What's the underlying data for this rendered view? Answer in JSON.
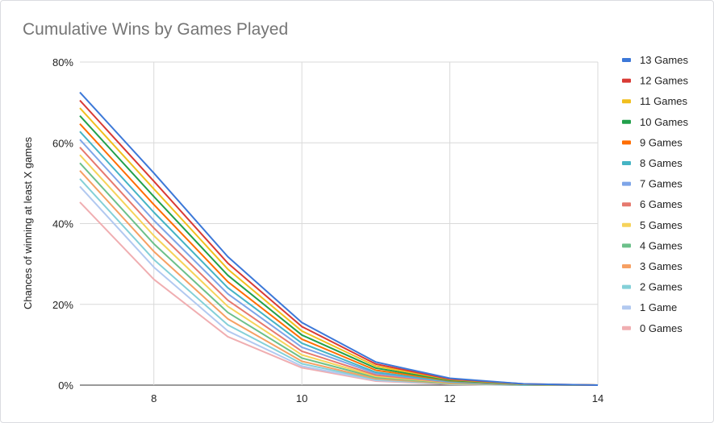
{
  "chart_data": {
    "type": "line",
    "title": "Cumulative Wins by Games Played",
    "xlabel": "",
    "ylabel": "Chances of winning at least X games",
    "xlim": [
      7,
      14
    ],
    "ylim": [
      0,
      0.8
    ],
    "x_ticks": [
      8,
      10,
      12,
      14
    ],
    "x_tick_labels": [
      "8",
      "10",
      "12",
      "14"
    ],
    "y_ticks": [
      0,
      0.2,
      0.4,
      0.6,
      0.8
    ],
    "y_tick_labels": [
      "0%",
      "20%",
      "40%",
      "60%",
      "80%"
    ],
    "grid": true,
    "legend_position": "right",
    "x": [
      7,
      8,
      9,
      10,
      11,
      12,
      13,
      14
    ],
    "series": [
      {
        "name": "13 Games",
        "color": "#3c78d8",
        "values": [
          0.725,
          0.525,
          0.318,
          0.155,
          0.057,
          0.017,
          0.003,
          0.0
        ]
      },
      {
        "name": "12 Games",
        "color": "#d93a34",
        "values": [
          0.705,
          0.505,
          0.302,
          0.145,
          0.052,
          0.015,
          0.003,
          0.0
        ]
      },
      {
        "name": "11 Games",
        "color": "#f1bf1e",
        "values": [
          0.686,
          0.486,
          0.287,
          0.134,
          0.047,
          0.014,
          0.002,
          0.0
        ]
      },
      {
        "name": "10 Games",
        "color": "#22a04b",
        "values": [
          0.667,
          0.467,
          0.272,
          0.124,
          0.042,
          0.012,
          0.002,
          0.0
        ]
      },
      {
        "name": "9 Games",
        "color": "#ff6d01",
        "values": [
          0.647,
          0.447,
          0.256,
          0.114,
          0.037,
          0.011,
          0.002,
          0.0
        ]
      },
      {
        "name": "8 Games",
        "color": "#45b4c4",
        "values": [
          0.628,
          0.428,
          0.241,
          0.104,
          0.032,
          0.009,
          0.001,
          0.0
        ]
      },
      {
        "name": "7 Games",
        "color": "#7ea5e8",
        "values": [
          0.608,
          0.408,
          0.226,
          0.094,
          0.029,
          0.008,
          0.001,
          0.0
        ]
      },
      {
        "name": "6 Games",
        "color": "#e6796e",
        "values": [
          0.589,
          0.389,
          0.21,
          0.084,
          0.025,
          0.007,
          0.001,
          0.0
        ]
      },
      {
        "name": "5 Games",
        "color": "#f6d35a",
        "values": [
          0.57,
          0.37,
          0.195,
          0.075,
          0.022,
          0.006,
          0.001,
          0.0
        ]
      },
      {
        "name": "4 Games",
        "color": "#6cc08a",
        "values": [
          0.55,
          0.35,
          0.18,
          0.067,
          0.019,
          0.005,
          0.001,
          0.0
        ]
      },
      {
        "name": "3 Games",
        "color": "#f6a063",
        "values": [
          0.531,
          0.331,
          0.164,
          0.059,
          0.016,
          0.004,
          0.001,
          0.0
        ]
      },
      {
        "name": "2 Games",
        "color": "#84d0d8",
        "values": [
          0.511,
          0.311,
          0.149,
          0.053,
          0.014,
          0.003,
          0.0,
          0.0
        ]
      },
      {
        "name": "1 Game",
        "color": "#b2c9f0",
        "values": [
          0.492,
          0.292,
          0.134,
          0.047,
          0.012,
          0.003,
          0.0,
          0.0
        ]
      },
      {
        "name": "0 Games",
        "color": "#f0aeb1",
        "values": [
          0.453,
          0.262,
          0.12,
          0.043,
          0.01,
          0.002,
          0.0,
          0.0
        ]
      }
    ]
  }
}
